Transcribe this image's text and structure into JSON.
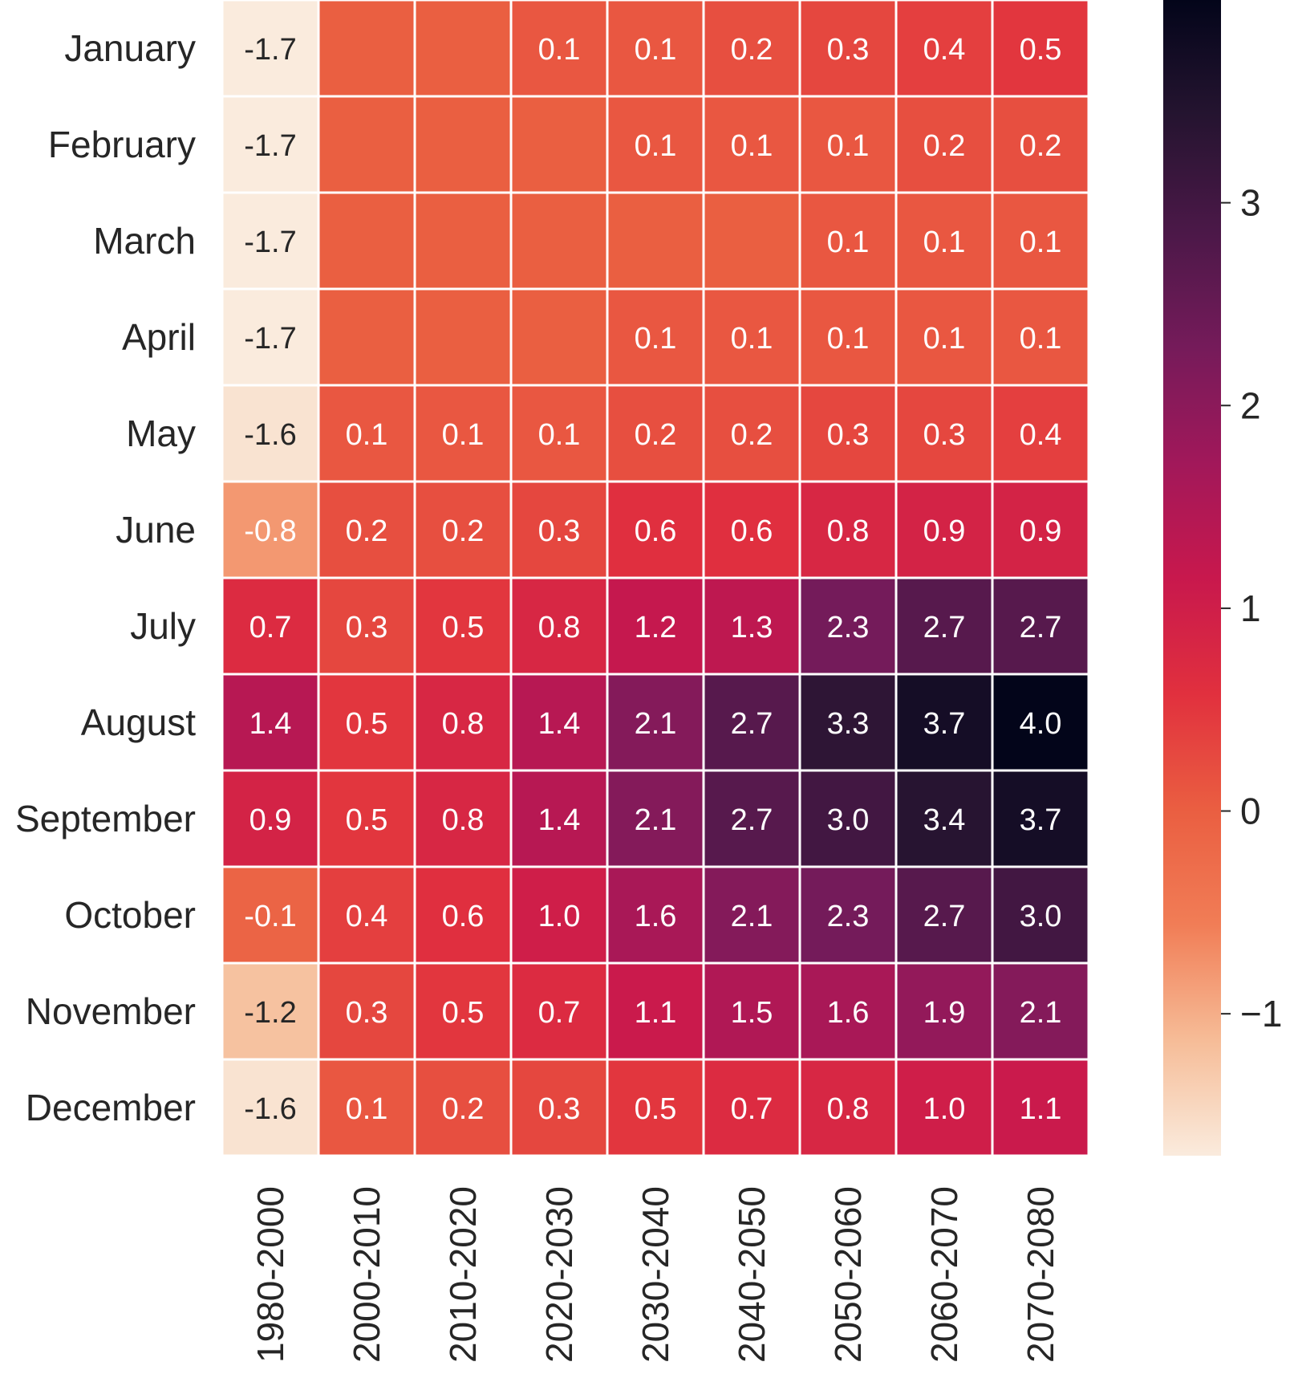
{
  "chart_data": {
    "type": "heatmap",
    "title": "",
    "xlabel": "",
    "ylabel": "",
    "rows": [
      "January",
      "February",
      "March",
      "April",
      "May",
      "June",
      "July",
      "August",
      "September",
      "October",
      "November",
      "December"
    ],
    "columns": [
      "1980-2000",
      "2000-2010",
      "2010-2020",
      "2020-2030",
      "2030-2040",
      "2040-2050",
      "2050-2060",
      "2060-2070",
      "2070-2080"
    ],
    "values": [
      [
        -1.7,
        0.0,
        0.0,
        0.1,
        0.1,
        0.2,
        0.3,
        0.4,
        0.5
      ],
      [
        -1.7,
        0.0,
        0.0,
        0.0,
        0.1,
        0.1,
        0.1,
        0.2,
        0.2
      ],
      [
        -1.7,
        0.0,
        0.0,
        0.0,
        0.0,
        0.0,
        0.1,
        0.1,
        0.1
      ],
      [
        -1.7,
        0.0,
        0.0,
        0.0,
        0.1,
        0.1,
        0.1,
        0.1,
        0.1
      ],
      [
        -1.6,
        0.1,
        0.1,
        0.1,
        0.2,
        0.2,
        0.3,
        0.3,
        0.4
      ],
      [
        -0.8,
        0.2,
        0.2,
        0.3,
        0.6,
        0.6,
        0.8,
        0.9,
        0.9
      ],
      [
        0.7,
        0.3,
        0.5,
        0.8,
        1.2,
        1.3,
        2.3,
        2.7,
        2.7
      ],
      [
        1.4,
        0.5,
        0.8,
        1.4,
        2.1,
        2.7,
        3.3,
        3.7,
        4.0
      ],
      [
        0.9,
        0.5,
        0.8,
        1.4,
        2.1,
        2.7,
        3.0,
        3.4,
        3.7
      ],
      [
        -0.1,
        0.4,
        0.6,
        1.0,
        1.6,
        2.1,
        2.3,
        2.7,
        3.0
      ],
      [
        -1.2,
        0.3,
        0.5,
        0.7,
        1.1,
        1.5,
        1.6,
        1.9,
        2.1
      ],
      [
        -1.6,
        0.1,
        0.2,
        0.3,
        0.5,
        0.7,
        0.8,
        1.0,
        1.1
      ]
    ],
    "annotations": [
      [
        "-1.7",
        "",
        "",
        "0.1",
        "0.1",
        "0.2",
        "0.3",
        "0.4",
        "0.5"
      ],
      [
        "-1.7",
        "",
        "",
        "",
        "0.1",
        "0.1",
        "0.1",
        "0.2",
        "0.2"
      ],
      [
        "-1.7",
        "",
        "",
        "",
        "",
        "",
        "0.1",
        "0.1",
        "0.1"
      ],
      [
        "-1.7",
        "",
        "",
        "",
        "0.1",
        "0.1",
        "0.1",
        "0.1",
        "0.1"
      ],
      [
        "-1.6",
        "0.1",
        "0.1",
        "0.1",
        "0.2",
        "0.2",
        "0.3",
        "0.3",
        "0.4"
      ],
      [
        "-0.8",
        "0.2",
        "0.2",
        "0.3",
        "0.6",
        "0.6",
        "0.8",
        "0.9",
        "0.9"
      ],
      [
        "0.7",
        "0.3",
        "0.5",
        "0.8",
        "1.2",
        "1.3",
        "2.3",
        "2.7",
        "2.7"
      ],
      [
        "1.4",
        "0.5",
        "0.8",
        "1.4",
        "2.1",
        "2.7",
        "3.3",
        "3.7",
        "4.0"
      ],
      [
        "0.9",
        "0.5",
        "0.8",
        "1.4",
        "2.1",
        "2.7",
        "3.0",
        "3.4",
        "3.7"
      ],
      [
        "-0.1",
        "0.4",
        "0.6",
        "1.0",
        "1.6",
        "2.1",
        "2.3",
        "2.7",
        "3.0"
      ],
      [
        "-1.2",
        "0.3",
        "0.5",
        "0.7",
        "1.1",
        "1.5",
        "1.6",
        "1.9",
        "2.1"
      ],
      [
        "-1.6",
        "0.1",
        "0.2",
        "0.3",
        "0.5",
        "0.7",
        "0.8",
        "1.0",
        "1.1"
      ]
    ],
    "colorbar": {
      "range": [
        -1.7,
        4.0
      ],
      "ticks": [
        3,
        2,
        1,
        0,
        -1
      ],
      "tick_labels": [
        "3",
        "2",
        "1",
        "0",
        "−1"
      ],
      "colormap": "rocket_r",
      "placement": "right"
    },
    "grid": true,
    "grid_color": "#ffffff"
  }
}
